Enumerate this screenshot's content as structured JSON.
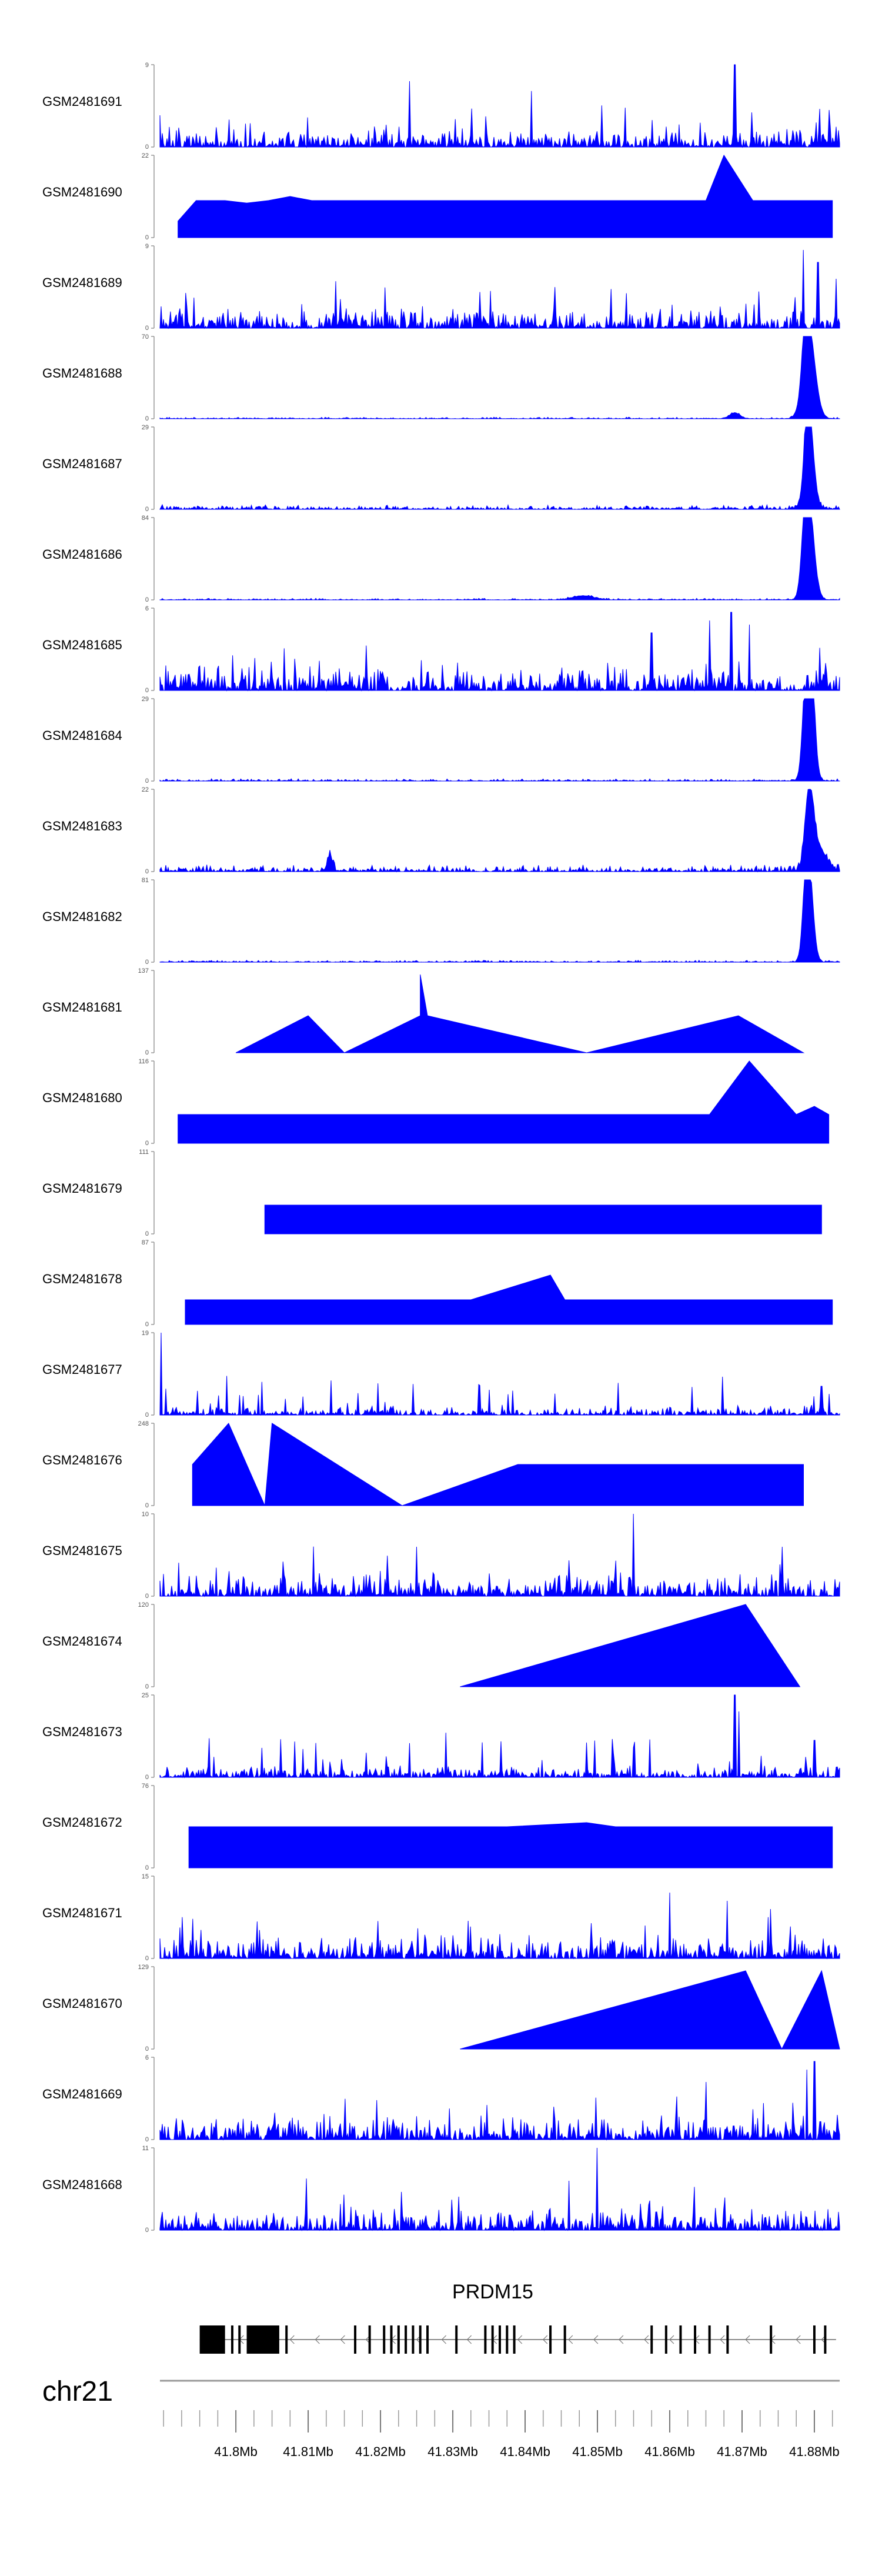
{
  "chart_data": {
    "type": "area",
    "title": "",
    "chromosome": "chr21",
    "gene": "PRDM15",
    "strand": "-",
    "series_color": "#0000ff",
    "x_range_mb": [
      41.7895,
      41.8835
    ],
    "x_ticks": [
      "41.8Mb",
      "41.81Mb",
      "41.82Mb",
      "41.83Mb",
      "41.84Mb",
      "41.85Mb",
      "41.86Mb",
      "41.87Mb",
      "41.88Mb"
    ],
    "x_tick_values": [
      41.8,
      41.81,
      41.82,
      41.83,
      41.84,
      41.85,
      41.86,
      41.87,
      41.88
    ],
    "gene_model": {
      "start": 41.795,
      "end": 41.883,
      "thick_exons": [
        [
          41.795,
          41.7985
        ],
        [
          41.8015,
          41.806
        ]
      ],
      "exon_lines": [
        41.7995,
        41.8005,
        41.807,
        41.8165,
        41.8185,
        41.8205,
        41.8215,
        41.8225,
        41.8235,
        41.8245,
        41.8255,
        41.8265,
        41.8305,
        41.8345,
        41.8355,
        41.8365,
        41.8375,
        41.8385,
        41.8435,
        41.8455,
        41.8575,
        41.8595,
        41.8615,
        41.8635,
        41.8655,
        41.868,
        41.874,
        41.88,
        41.8815
      ]
    },
    "series": [
      {
        "name": "GSM2481691",
        "ymax": "9",
        "ymin": "0",
        "style": "dense",
        "seed": 11,
        "noise": 0.25,
        "spikes": [
          [
            41.824,
            0.8
          ],
          [
            41.869,
            1.0
          ],
          [
            41.882,
            0.45
          ]
        ]
      },
      {
        "name": "GSM2481690",
        "ymax": "22",
        "ymin": "0",
        "style": "tri",
        "peaks": [
          [
            41.792,
            0.2
          ],
          [
            41.7945,
            0.45
          ],
          [
            41.7985,
            0.45
          ],
          [
            41.8015,
            0.42
          ],
          [
            41.8045,
            0.45
          ],
          [
            41.8075,
            0.5
          ],
          [
            41.8105,
            0.45
          ],
          [
            41.8135,
            0.45
          ],
          [
            41.8165,
            0.45
          ],
          [
            41.8195,
            0.45
          ],
          [
            41.8225,
            0.45
          ],
          [
            41.8255,
            0.45
          ],
          [
            41.829,
            0.45
          ],
          [
            41.8335,
            0.45
          ],
          [
            41.838,
            0.45
          ],
          [
            41.8425,
            0.45
          ],
          [
            41.847,
            0.45
          ],
          [
            41.8515,
            0.45
          ],
          [
            41.856,
            0.45
          ],
          [
            41.8605,
            0.45
          ],
          [
            41.865,
            0.45
          ],
          [
            41.8675,
            1.0
          ],
          [
            41.8715,
            0.45
          ],
          [
            41.8745,
            0.45
          ],
          [
            41.8775,
            0.45
          ],
          [
            41.8805,
            0.45
          ],
          [
            41.8825,
            0.45
          ]
        ]
      },
      {
        "name": "GSM2481689",
        "ymax": "9",
        "ymin": "0",
        "style": "dense",
        "seed": 23,
        "noise": 0.3,
        "spikes": [
          [
            41.8785,
            0.95
          ],
          [
            41.8805,
            0.8
          ],
          [
            41.883,
            0.6
          ]
        ]
      },
      {
        "name": "GSM2481688",
        "ymax": "70",
        "ymin": "0",
        "style": "peak",
        "seed": 31,
        "noise": 0.02,
        "peaks": [
          [
            41.8793,
            1.0,
            0.0012
          ],
          [
            41.8788,
            0.6,
            0.0006
          ],
          [
            41.869,
            0.07,
            0.001
          ]
        ]
      },
      {
        "name": "GSM2481687",
        "ymax": "29",
        "ymin": "0",
        "style": "peak",
        "seed": 37,
        "noise": 0.06,
        "peaks": [
          [
            41.8793,
            1.0,
            0.0009
          ],
          [
            41.879,
            0.5,
            0.0005
          ]
        ]
      },
      {
        "name": "GSM2481686",
        "ymax": "84",
        "ymin": "0",
        "style": "peak",
        "seed": 41,
        "noise": 0.02,
        "peaks": [
          [
            41.8793,
            1.0,
            0.001
          ],
          [
            41.8788,
            0.65,
            0.0007
          ],
          [
            41.848,
            0.05,
            0.002
          ]
        ]
      },
      {
        "name": "GSM2481685",
        "ymax": "6",
        "ymin": "0",
        "style": "dense",
        "seed": 47,
        "noise": 0.32,
        "spikes": [
          [
            41.8655,
            0.85
          ],
          [
            41.8685,
            0.95
          ],
          [
            41.871,
            0.8
          ],
          [
            41.8575,
            0.7
          ]
        ]
      },
      {
        "name": "GSM2481684",
        "ymax": "29",
        "ymin": "0",
        "style": "peak",
        "seed": 53,
        "noise": 0.03,
        "peaks": [
          [
            41.8793,
            1.0,
            0.0009
          ],
          [
            41.8788,
            0.7,
            0.0006
          ],
          [
            41.8798,
            0.5,
            0.0005
          ]
        ]
      },
      {
        "name": "GSM2481683",
        "ymax": "22",
        "ymin": "0",
        "style": "peak",
        "seed": 59,
        "noise": 0.09,
        "peaks": [
          [
            41.8793,
            0.9,
            0.0008
          ],
          [
            41.8805,
            0.3,
            0.0015
          ],
          [
            41.813,
            0.2,
            0.0005
          ]
        ]
      },
      {
        "name": "GSM2481682",
        "ymax": "81",
        "ymin": "0",
        "style": "peak",
        "seed": 61,
        "noise": 0.025,
        "peaks": [
          [
            41.8793,
            1.0,
            0.0008
          ],
          [
            41.8788,
            0.6,
            0.0006
          ]
        ]
      },
      {
        "name": "GSM2481681",
        "ymax": "137",
        "ymin": "0",
        "style": "tri",
        "peaks": [
          [
            41.8,
            0.0
          ],
          [
            41.81,
            0.45
          ],
          [
            41.815,
            0.0
          ],
          [
            41.8255,
            0.45
          ],
          [
            41.8255,
            0.95
          ],
          [
            41.8265,
            0.45
          ],
          [
            41.8485,
            0.0
          ],
          [
            41.8695,
            0.45
          ],
          [
            41.8785,
            0.0
          ]
        ]
      },
      {
        "name": "GSM2481680",
        "ymax": "116",
        "ymin": "0",
        "style": "tri",
        "peaks": [
          [
            41.792,
            0.35
          ],
          [
            41.8,
            0.35
          ],
          [
            41.816,
            0.35
          ],
          [
            41.821,
            0.35
          ],
          [
            41.8235,
            0.35
          ],
          [
            41.8265,
            0.35
          ],
          [
            41.8295,
            0.35
          ],
          [
            41.8325,
            0.35
          ],
          [
            41.835,
            0.35
          ],
          [
            41.8545,
            0.35
          ],
          [
            41.8655,
            0.35
          ],
          [
            41.871,
            1.0
          ],
          [
            41.8775,
            0.35
          ],
          [
            41.88,
            0.45
          ],
          [
            41.882,
            0.35
          ]
        ]
      },
      {
        "name": "GSM2481679",
        "ymax": "111",
        "ymin": "0",
        "style": "tri",
        "peaks": [
          [
            41.804,
            0.35
          ],
          [
            41.813,
            0.35
          ],
          [
            41.8245,
            0.35
          ],
          [
            41.84,
            0.35
          ],
          [
            41.8455,
            0.35
          ],
          [
            41.847,
            0.35
          ],
          [
            41.8515,
            0.35
          ],
          [
            41.8565,
            0.35
          ],
          [
            41.861,
            0.35
          ],
          [
            41.865,
            0.35
          ],
          [
            41.8685,
            0.35
          ],
          [
            41.8715,
            0.35
          ],
          [
            41.8765,
            0.35
          ],
          [
            41.881,
            0.35
          ]
        ]
      },
      {
        "name": "GSM2481678",
        "ymax": "87",
        "ymin": "0",
        "style": "tri",
        "peaks": [
          [
            41.793,
            0.3
          ],
          [
            41.804,
            0.3
          ],
          [
            41.811,
            0.3
          ],
          [
            41.8215,
            0.3
          ],
          [
            41.8325,
            0.3
          ],
          [
            41.8435,
            0.6
          ],
          [
            41.8455,
            0.3
          ],
          [
            41.8495,
            0.3
          ],
          [
            41.857,
            0.3
          ],
          [
            41.869,
            0.3
          ],
          [
            41.874,
            0.3
          ],
          [
            41.879,
            0.3
          ],
          [
            41.8825,
            0.3
          ]
        ]
      },
      {
        "name": "GSM2481677",
        "ymax": "19",
        "ymin": "0",
        "style": "dense",
        "seed": 71,
        "noise": 0.12,
        "spikes": [
          [
            41.7897,
            1.0
          ],
          [
            41.881,
            0.35
          ]
        ]
      },
      {
        "name": "GSM2481676",
        "ymax": "248",
        "ymin": "0",
        "style": "tri",
        "peaks": [
          [
            41.794,
            0.5
          ],
          [
            41.799,
            1.0
          ],
          [
            41.804,
            0.0
          ],
          [
            41.805,
            1.0
          ],
          [
            41.823,
            0.0
          ],
          [
            41.839,
            0.5
          ],
          [
            41.849,
            0.5
          ],
          [
            41.8595,
            0.5
          ],
          [
            41.868,
            0.5
          ],
          [
            41.8785,
            0.5
          ]
        ]
      },
      {
        "name": "GSM2481675",
        "ymax": "10",
        "ymin": "0",
        "style": "dense",
        "seed": 79,
        "noise": 0.3,
        "spikes": [
          [
            41.855,
            1.0
          ],
          [
            41.8755,
            0.6
          ],
          [
            41.825,
            0.6
          ]
        ]
      },
      {
        "name": "GSM2481674",
        "ymax": "120",
        "ymin": "0",
        "style": "tri",
        "peaks": [
          [
            41.831,
            0.0
          ],
          [
            41.8705,
            1.0
          ],
          [
            41.878,
            0.0
          ]
        ]
      },
      {
        "name": "GSM2481673",
        "ymax": "25",
        "ymin": "0",
        "style": "dense",
        "seed": 83,
        "noise": 0.15,
        "spikes": [
          [
            41.869,
            1.0
          ],
          [
            41.8695,
            0.8
          ],
          [
            41.88,
            0.45
          ]
        ]
      },
      {
        "name": "GSM2481672",
        "ymax": "76",
        "ymin": "0",
        "style": "tri",
        "peaks": [
          [
            41.7935,
            0.5
          ],
          [
            41.8025,
            0.5
          ],
          [
            41.808,
            0.5
          ],
          [
            41.8145,
            0.5
          ],
          [
            41.824,
            0.5
          ],
          [
            41.8375,
            0.5
          ],
          [
            41.8485,
            0.55
          ],
          [
            41.8525,
            0.5
          ],
          [
            41.8605,
            0.5
          ],
          [
            41.872,
            0.5
          ],
          [
            41.8825,
            0.5
          ]
        ]
      },
      {
        "name": "GSM2481671",
        "ymax": "15",
        "ymin": "0",
        "style": "dense",
        "seed": 89,
        "noise": 0.3,
        "spikes": [
          [
            41.86,
            0.8
          ],
          [
            41.868,
            0.7
          ],
          [
            41.874,
            0.6
          ]
        ]
      },
      {
        "name": "GSM2481670",
        "ymax": "129",
        "ymin": "0",
        "style": "tri",
        "peaks": [
          [
            41.831,
            0.0
          ],
          [
            41.8705,
            0.95
          ],
          [
            41.8755,
            0.0
          ],
          [
            41.881,
            0.95
          ],
          [
            41.8835,
            0.0
          ]
        ]
      },
      {
        "name": "GSM2481669",
        "ymax": "6",
        "ymin": "0",
        "style": "dense",
        "seed": 97,
        "noise": 0.3,
        "spikes": [
          [
            41.88,
            0.95
          ],
          [
            41.879,
            0.85
          ],
          [
            41.865,
            0.7
          ]
        ]
      },
      {
        "name": "GSM2481668",
        "ymax": "11",
        "ymin": "0",
        "style": "dense",
        "seed": 101,
        "noise": 0.3,
        "spikes": [
          [
            41.85,
            1.0
          ],
          [
            41.846,
            0.6
          ]
        ]
      }
    ]
  }
}
